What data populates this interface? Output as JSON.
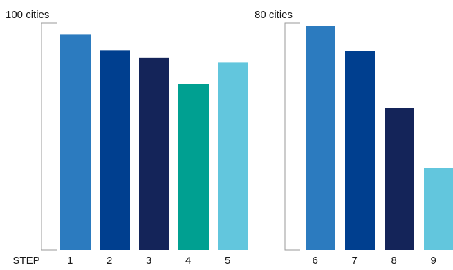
{
  "chart_data": [
    {
      "type": "bar",
      "axis_label": "100 cities",
      "step_label": "STEP",
      "categories": [
        "1",
        "2",
        "3",
        "4",
        "5"
      ],
      "values": [
        95,
        88,
        84.5,
        73,
        82.5
      ],
      "colors": [
        "#2c7bbf",
        "#003f8f",
        "#142459",
        "#00a091",
        "#62c6dd"
      ],
      "ylim": [
        0,
        100
      ]
    },
    {
      "type": "bar",
      "axis_label": "80 cities",
      "categories": [
        "6",
        "7",
        "8",
        "9"
      ],
      "values": [
        79,
        70,
        50,
        29
      ],
      "colors": [
        "#2c7bbf",
        "#003f8f",
        "#142459",
        "#62c6dd"
      ],
      "ylim": [
        0,
        80
      ]
    }
  ]
}
